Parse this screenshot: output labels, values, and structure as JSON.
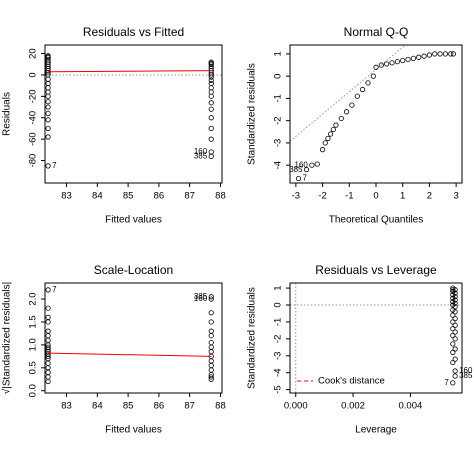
{
  "chart_data": [
    {
      "type": "scatter",
      "title": "Residuals vs Fitted",
      "xlabel": "Fitted values",
      "ylabel": "Residuals",
      "xlim": [
        82.3,
        88.05
      ],
      "ylim": [
        -101,
        28
      ],
      "xticks": [
        83,
        84,
        85,
        86,
        87,
        88
      ],
      "yticks": [
        -80,
        -60,
        -40,
        -20,
        0,
        20
      ],
      "series": [
        {
          "color": "#000000",
          "x": [
            82.4,
            82.4,
            82.4,
            82.4,
            82.4,
            82.4,
            82.4,
            82.4,
            82.4,
            82.4,
            82.4,
            82.4,
            82.4,
            82.4,
            82.4,
            82.4,
            82.4,
            82.4,
            82.4,
            82.4,
            82.4,
            82.4,
            82.4,
            87.7,
            87.7,
            87.7,
            87.7,
            87.7,
            87.7,
            87.7,
            87.7,
            87.7,
            87.7,
            87.7,
            87.7,
            87.7,
            87.7,
            87.7,
            87.7,
            87.7,
            87.7,
            87.7,
            87.7,
            87.7
          ],
          "y": [
            18,
            17,
            16,
            14,
            12,
            10,
            8,
            6,
            4,
            2,
            0,
            -4,
            -8,
            -12,
            -16,
            -20,
            -25,
            -30,
            -36,
            -42,
            -50,
            -58,
            -85,
            12,
            11,
            10,
            8,
            6,
            4,
            2,
            0,
            -2,
            -5,
            -8,
            -12,
            -16,
            -20,
            -26,
            -32,
            -40,
            -50,
            -60,
            -72,
            -76
          ]
        }
      ],
      "lines": [
        {
          "color": "#ff0000",
          "dash": "solid",
          "x": [
            82.4,
            87.7
          ],
          "y": [
            3,
            4
          ]
        }
      ],
      "hlines": [
        {
          "value": 0,
          "color": "#999999",
          "dash": "dotted"
        }
      ],
      "point_labels": [
        {
          "text": "7",
          "x": 82.4,
          "y": -85,
          "pos": "right"
        },
        {
          "text": "160",
          "x": 87.7,
          "y": -72,
          "pos": "left"
        },
        {
          "text": "385",
          "x": 87.7,
          "y": -76,
          "pos": "left"
        }
      ]
    },
    {
      "type": "scatter",
      "title": "Normal Q-Q",
      "xlabel": "Theoretical Quantiles",
      "ylabel": "Standardized residuals",
      "xlim": [
        -3.22,
        3.22
      ],
      "ylim": [
        -4.8,
        1.4
      ],
      "xticks": [
        -3,
        -2,
        -1,
        0,
        1,
        2,
        3
      ],
      "yticks": [
        -4,
        -3,
        -2,
        -1,
        0,
        1
      ],
      "series": [
        {
          "color": "#000000",
          "x": [
            -2.9,
            -2.6,
            -2.4,
            -2.2,
            -2.0,
            -1.9,
            -1.8,
            -1.7,
            -1.6,
            -1.5,
            -1.3,
            -1.1,
            -0.9,
            -0.7,
            -0.5,
            -0.3,
            -0.1,
            0.0,
            0.2,
            0.4,
            0.6,
            0.8,
            1.0,
            1.2,
            1.4,
            1.6,
            1.8,
            2.0,
            2.2,
            2.4,
            2.6,
            2.8,
            2.9
          ],
          "y": [
            -4.6,
            -4.2,
            -4.0,
            -3.95,
            -3.3,
            -3.0,
            -2.8,
            -2.6,
            -2.4,
            -2.2,
            -1.9,
            -1.6,
            -1.3,
            -0.9,
            -0.6,
            -0.3,
            0.0,
            0.4,
            0.5,
            0.55,
            0.6,
            0.65,
            0.7,
            0.75,
            0.8,
            0.85,
            0.9,
            0.95,
            1.0,
            1.0,
            1.0,
            1.0,
            1.0
          ]
        }
      ],
      "abline": {
        "intercept": 0.3,
        "slope": 1.0,
        "color": "#999999",
        "dash": "dotted"
      },
      "point_labels": [
        {
          "text": "7",
          "x": -2.9,
          "y": -4.6,
          "pos": "right"
        },
        {
          "text": "385",
          "x": -2.6,
          "y": -4.2,
          "pos": "left"
        },
        {
          "text": "160",
          "x": -2.4,
          "y": -4.0,
          "pos": "left"
        }
      ]
    },
    {
      "type": "scatter",
      "title": "Scale-Location",
      "xlabel": "Fitted values",
      "ylabel": "√|Standardized residuals|",
      "xlim": [
        82.3,
        88.05
      ],
      "ylim": [
        -0.05,
        2.35
      ],
      "xticks": [
        83,
        84,
        85,
        86,
        87,
        88
      ],
      "yticks": [
        {
          "value": 0,
          "label": "0.0"
        },
        0.5,
        {
          "value": 1,
          "label": "1.0"
        },
        1.5,
        {
          "value": 2,
          "label": "2.0"
        }
      ],
      "series": [
        {
          "color": "#000000",
          "x": [
            82.4,
            82.4,
            82.4,
            82.4,
            82.4,
            82.4,
            82.4,
            82.4,
            82.4,
            82.4,
            82.4,
            82.4,
            82.4,
            82.4,
            82.4,
            82.4,
            82.4,
            82.4,
            82.4,
            87.7,
            87.7,
            87.7,
            87.7,
            87.7,
            87.7,
            87.7,
            87.7,
            87.7,
            87.7,
            87.7,
            87.7,
            87.7,
            87.7,
            87.7,
            87.7
          ],
          "y": [
            2.2,
            1.8,
            1.6,
            1.5,
            1.3,
            1.2,
            1.1,
            1.0,
            0.95,
            0.9,
            0.85,
            0.8,
            0.75,
            0.7,
            0.6,
            0.5,
            0.4,
            0.3,
            0.2,
            2.05,
            2.0,
            1.7,
            1.5,
            1.3,
            1.2,
            1.05,
            0.95,
            0.85,
            0.75,
            0.65,
            0.55,
            0.45,
            0.35,
            0.3,
            0.25
          ]
        }
      ],
      "lines": [
        {
          "color": "#ff0000",
          "dash": "solid",
          "x": [
            82.4,
            87.7
          ],
          "y": [
            0.82,
            0.75
          ]
        }
      ],
      "point_labels": [
        {
          "text": "7",
          "x": 82.4,
          "y": 2.2,
          "pos": "right"
        },
        {
          "text": "385",
          "x": 87.7,
          "y": 2.05,
          "pos": "left"
        },
        {
          "text": "160",
          "x": 87.7,
          "y": 2.0,
          "pos": "left"
        }
      ]
    },
    {
      "type": "scatter",
      "title": "Residuals vs Leverage",
      "xlabel": "Leverage",
      "ylabel": "Standardized residuals",
      "xlim": [
        -0.0002,
        0.0058
      ],
      "ylim": [
        -5.2,
        1.3
      ],
      "xticks": [
        {
          "value": 0,
          "label": "0.000"
        },
        0.002,
        0.004
      ],
      "yticks": [
        -5,
        -4,
        -3,
        -2,
        -1,
        0,
        1
      ],
      "series": [
        {
          "color": "#000000",
          "x": [
            0.00548,
            0.00548,
            0.00548,
            0.00548,
            0.00548,
            0.00548,
            0.00548,
            0.00548,
            0.00548,
            0.00548,
            0.00548,
            0.00548,
            0.00548,
            0.00548,
            0.00548,
            0.00548,
            0.00556,
            0.00556,
            0.00556,
            0.00556,
            0.00556,
            0.00556,
            0.00556,
            0.00556,
            0.00556,
            0.00556,
            0.00556,
            0.00556,
            0.00556,
            0.00556,
            0.00556
          ],
          "y": [
            1.0,
            0.9,
            0.8,
            0.6,
            0.4,
            0.2,
            0,
            -0.3,
            -0.6,
            -1.0,
            -1.4,
            -1.8,
            -2.3,
            -2.8,
            -3.4,
            -4.6,
            0.9,
            0.7,
            0.5,
            0.3,
            0.1,
            -0.1,
            -0.4,
            -0.8,
            -1.2,
            -1.6,
            -2.0,
            -2.6,
            -3.2,
            -3.9,
            -4.2
          ]
        }
      ],
      "hlines": [
        {
          "value": 0,
          "color": "#999999",
          "dash": "dotted"
        }
      ],
      "vlines": [
        {
          "value": 0,
          "color": "#999999",
          "dash": "dotted"
        }
      ],
      "point_labels": [
        {
          "text": "7",
          "x": 0.00548,
          "y": -4.6,
          "pos": "left"
        },
        {
          "text": "160",
          "x": 0.00556,
          "y": -3.9,
          "pos": "right"
        },
        {
          "text": "385",
          "x": 0.00556,
          "y": -4.2,
          "pos": "right"
        }
      ],
      "legend": {
        "position": "bottomleft",
        "entries": [
          {
            "text": "Cook's distance",
            "color": "#ff0000",
            "dash": "dashed"
          }
        ]
      }
    }
  ]
}
